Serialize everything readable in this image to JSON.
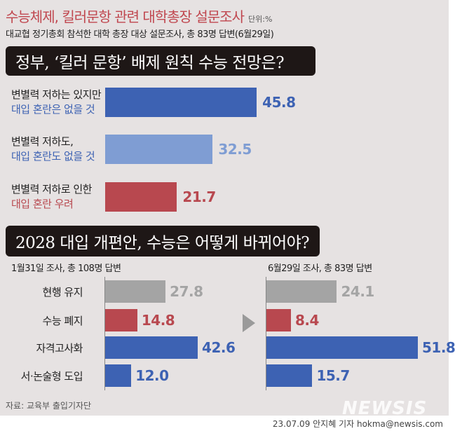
{
  "header": {
    "title": "수능체제, 킬러문항 관련 대학총장 설문조사",
    "unit": "단위:%",
    "subtitle": "대교협 정기총회 참석한 대학 총장 대상 설문조사, 총 83명 답변(6월29일)"
  },
  "colors": {
    "title": "#c0474f",
    "dark_blue": "#3d62b3",
    "light_blue": "#7f9dd3",
    "red": "#b8484f",
    "gray": "#a4a4a4"
  },
  "chart_data": [
    {
      "type": "bar",
      "orientation": "horizontal",
      "title": "정부, ‘킬러 문항’ 배제 원칙 수능 전망은?",
      "categories": [
        [
          "변별력 저하는 있지만",
          "대입 혼란은 없을 것"
        ],
        [
          "변별력 저하도,",
          "대입 혼란도 없을 것"
        ],
        [
          "변별력 저하로 인한",
          "대입 혼란 우려"
        ]
      ],
      "values": [
        45.8,
        32.5,
        21.7
      ],
      "labels": [
        "45.8",
        "32.5",
        "21.7"
      ],
      "colors": [
        "#3d62b3",
        "#7f9dd3",
        "#b8484f"
      ],
      "xlim": [
        0,
        50
      ]
    },
    {
      "type": "bar",
      "orientation": "horizontal",
      "title": "2028 대입 개편안, 수능은 어떻게 바뀌어야?",
      "categories": [
        "현행 유지",
        "수능 폐지",
        "자격고사화",
        "서·논술형 도입"
      ],
      "panels": [
        {
          "caption": "1월31일 조사, 총 108명 답변",
          "values": [
            27.8,
            14.8,
            42.6,
            12.0
          ],
          "labels": [
            "27.8",
            "14.8",
            "42.6",
            "12.0"
          ]
        },
        {
          "caption": "6월29일 조사, 총 83명 답변",
          "values": [
            24.1,
            8.4,
            51.8,
            15.7
          ],
          "labels": [
            "24.1",
            "8.4",
            "51.8",
            "15.7"
          ]
        }
      ],
      "colors": [
        "#a4a4a4",
        "#b8484f",
        "#3d62b3",
        "#3d62b3"
      ],
      "xlim": [
        0,
        60
      ]
    }
  ],
  "footer": {
    "source": "자료: 교육부 출입기자단",
    "logo": "NEWSIS",
    "credit": "23.07.09 안지혜 기자 hokma@newsis.com"
  }
}
